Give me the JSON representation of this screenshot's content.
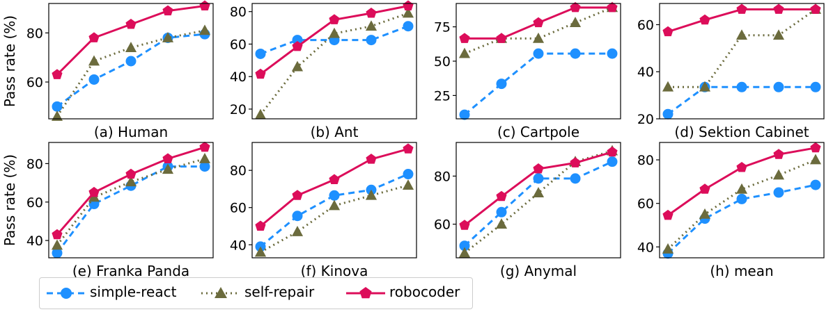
{
  "ylabel": "Pass rate (%)",
  "series_styles": [
    {
      "name": "simple-react",
      "color": "#1e90ff",
      "dash": "9,6",
      "marker": "circle"
    },
    {
      "name": "self-repair",
      "color": "#6b6b3d",
      "dash": "2,5",
      "marker": "triangle"
    },
    {
      "name": "robocoder",
      "color": "#dc0d5a",
      "dash": "",
      "marker": "pentagon"
    }
  ],
  "legend": [
    "simple-react",
    "self-repair",
    "robocoder"
  ],
  "chart_data": [
    {
      "type": "line",
      "title": "(a) Human",
      "x": [
        1,
        2,
        3,
        4,
        5
      ],
      "ylim": [
        45,
        92
      ],
      "yticks": [
        60,
        80
      ],
      "series": [
        {
          "name": "simple-react",
          "values": [
            50,
            61,
            68.5,
            78,
            79.5
          ]
        },
        {
          "name": "self-repair",
          "values": [
            46,
            68.5,
            74,
            78,
            81
          ]
        },
        {
          "name": "robocoder",
          "values": [
            63,
            78,
            83.5,
            89,
            91
          ]
        }
      ]
    },
    {
      "type": "line",
      "title": "(b) Ant",
      "x": [
        1,
        2,
        3,
        4,
        5
      ],
      "ylim": [
        14,
        85
      ],
      "yticks": [
        20,
        40,
        60,
        80
      ],
      "series": [
        {
          "name": "simple-react",
          "values": [
            54,
            62.5,
            62.5,
            62.5,
            71
          ]
        },
        {
          "name": "self-repair",
          "values": [
            16.5,
            46,
            66.5,
            71,
            79
          ]
        },
        {
          "name": "robocoder",
          "values": [
            41.5,
            58.5,
            75,
            79,
            83.5
          ]
        }
      ]
    },
    {
      "type": "line",
      "title": "(c) Cartpole",
      "x": [
        1,
        2,
        3,
        4,
        5
      ],
      "ylim": [
        8,
        92
      ],
      "yticks": [
        25,
        50,
        75
      ],
      "series": [
        {
          "name": "simple-react",
          "values": [
            11,
            33.5,
            55.5,
            55.5,
            55.5
          ]
        },
        {
          "name": "self-repair",
          "values": [
            55.5,
            66.5,
            66.5,
            78,
            89
          ]
        },
        {
          "name": "robocoder",
          "values": [
            66.5,
            66.5,
            78,
            89,
            89
          ]
        }
      ]
    },
    {
      "type": "line",
      "title": "(d) Sektion Cabinet",
      "x": [
        1,
        2,
        3,
        4,
        5
      ],
      "ylim": [
        20,
        69
      ],
      "yticks": [
        20,
        40,
        60
      ],
      "series": [
        {
          "name": "simple-react",
          "values": [
            22,
            33.5,
            33.5,
            33.5,
            33.5
          ]
        },
        {
          "name": "self-repair",
          "values": [
            33.5,
            33.5,
            55.5,
            55.5,
            66.5
          ]
        },
        {
          "name": "robocoder",
          "values": [
            57,
            62,
            66.5,
            66.5,
            66.5
          ]
        }
      ]
    },
    {
      "type": "line",
      "title": "(e) Franka Panda",
      "x": [
        1,
        2,
        3,
        4,
        5
      ],
      "ylim": [
        31,
        91
      ],
      "yticks": [
        40,
        60,
        80
      ],
      "series": [
        {
          "name": "simple-react",
          "values": [
            33.5,
            59,
            68.5,
            78.5,
            78.5
          ]
        },
        {
          "name": "self-repair",
          "values": [
            37.5,
            62.5,
            70.5,
            77,
            82.5
          ]
        },
        {
          "name": "robocoder",
          "values": [
            43,
            65,
            74.5,
            82.5,
            88.5
          ]
        }
      ]
    },
    {
      "type": "line",
      "title": "(f) Kinova",
      "x": [
        1,
        2,
        3,
        4,
        5
      ],
      "ylim": [
        33,
        95
      ],
      "yticks": [
        40,
        60,
        80
      ],
      "series": [
        {
          "name": "simple-react",
          "values": [
            39,
            55.5,
            66.5,
            69.5,
            78
          ]
        },
        {
          "name": "self-repair",
          "values": [
            36,
            47,
            61,
            66.5,
            72
          ]
        },
        {
          "name": "robocoder",
          "values": [
            50,
            66.5,
            75,
            86,
            91.5
          ]
        }
      ]
    },
    {
      "type": "line",
      "title": "(g) Anymal",
      "x": [
        1,
        2,
        3,
        4,
        5
      ],
      "ylim": [
        46,
        94
      ],
      "yticks": [
        60,
        80
      ],
      "series": [
        {
          "name": "simple-react",
          "values": [
            51,
            65,
            79,
            79,
            86
          ]
        },
        {
          "name": "self-repair",
          "values": [
            48,
            60,
            73,
            86,
            90.5
          ]
        },
        {
          "name": "robocoder",
          "values": [
            59.5,
            71.5,
            83,
            85.5,
            90
          ]
        }
      ]
    },
    {
      "type": "line",
      "title": "(h) mean",
      "x": [
        1,
        2,
        3,
        4,
        5
      ],
      "ylim": [
        35,
        88
      ],
      "yticks": [
        40,
        60,
        80
      ],
      "series": [
        {
          "name": "simple-react",
          "values": [
            37,
            53,
            62,
            65,
            68.5
          ]
        },
        {
          "name": "self-repair",
          "values": [
            39,
            55,
            66.5,
            73,
            80
          ]
        },
        {
          "name": "robocoder",
          "values": [
            54.5,
            66.5,
            76.5,
            82.5,
            85.5
          ]
        }
      ]
    }
  ]
}
